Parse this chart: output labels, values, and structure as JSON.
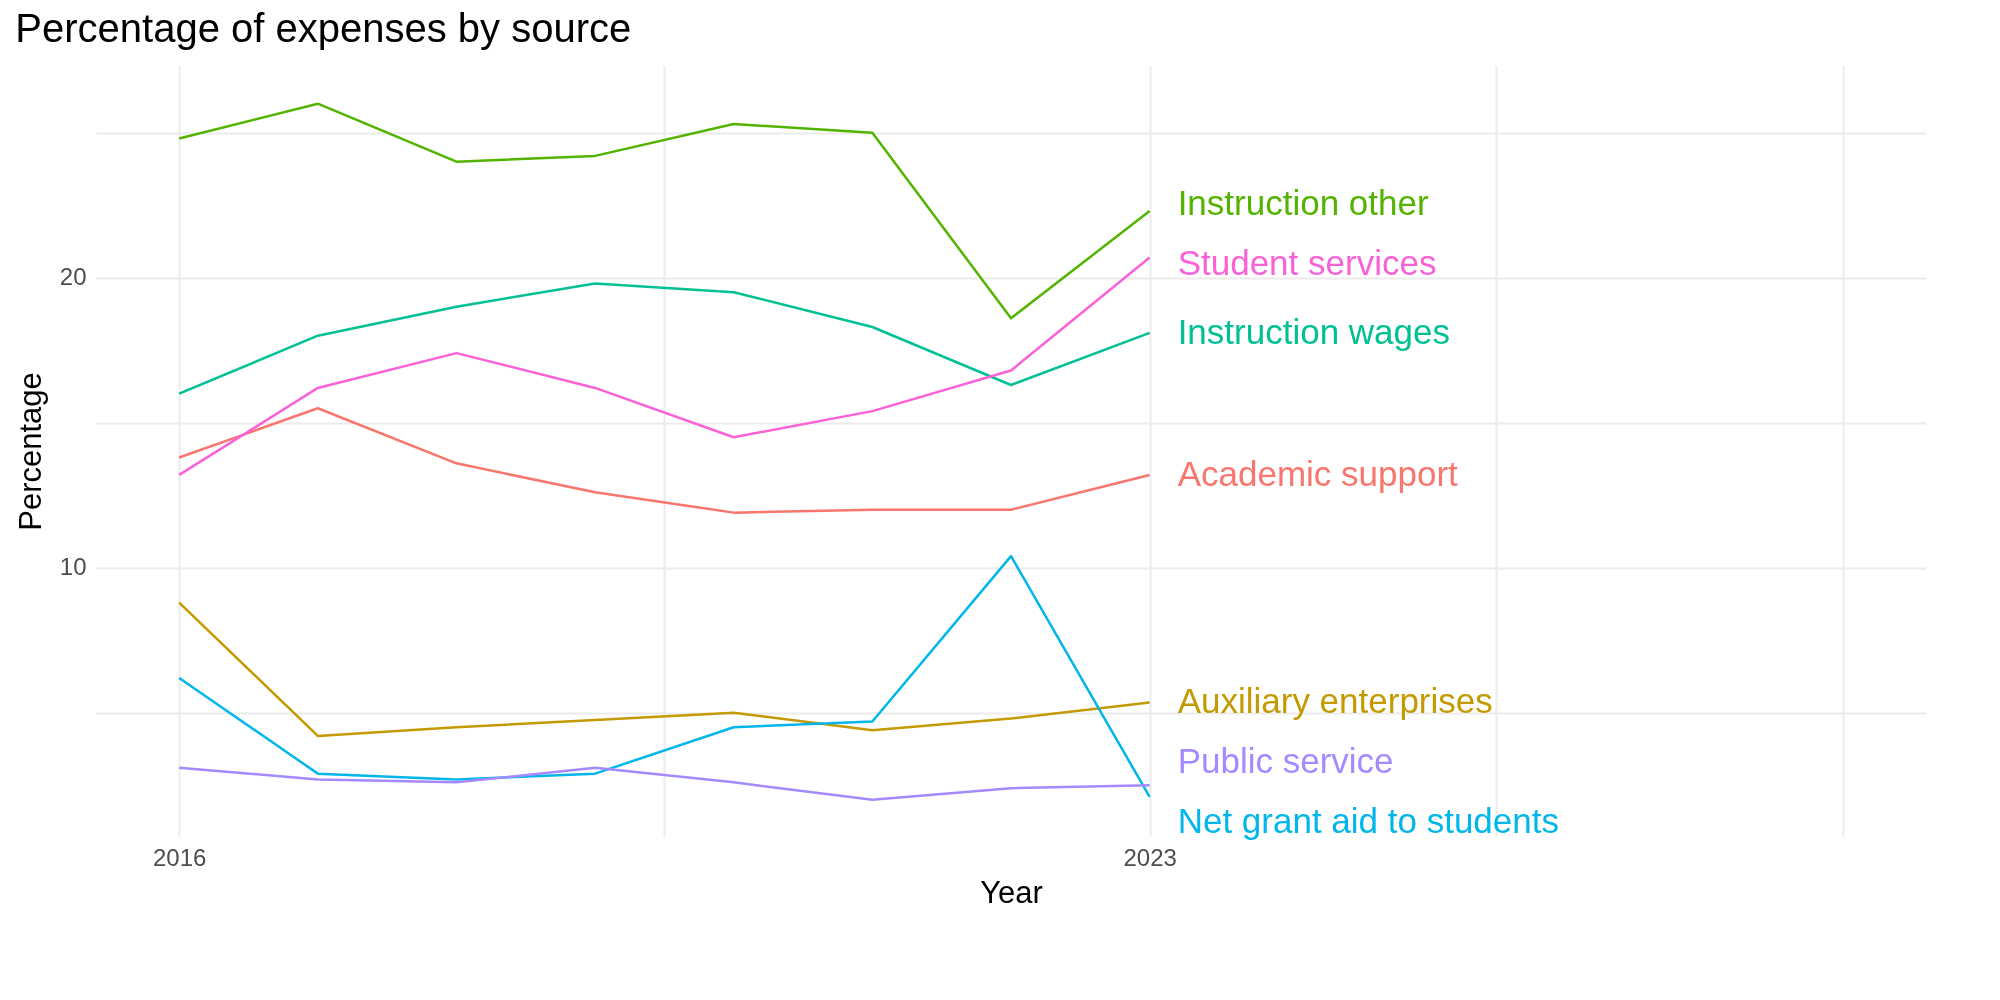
{
  "chart_data": {
    "type": "line",
    "title": "Percentage of expenses by source",
    "xlabel": "Year",
    "ylabel": "Percentage",
    "x": [
      2016,
      2017,
      2018,
      2019,
      2020,
      2021,
      2022,
      2023
    ],
    "xlim": [
      2015.4,
      2028.6
    ],
    "xticks": [
      2016,
      {
        "value": 2019.5,
        "label": null
      },
      2023,
      {
        "value": 2025.5,
        "label": null
      },
      {
        "value": 2028,
        "label": null
      }
    ],
    "ylim": [
      0.75,
      27.3
    ],
    "yticks": [
      {
        "value": 5,
        "label": null
      },
      10,
      {
        "value": 15,
        "label": null
      },
      20,
      {
        "value": 25,
        "label": null
      }
    ],
    "grid": true,
    "legend": false,
    "series": [
      {
        "name": "Academic support",
        "color": "#f8766d",
        "values": [
          13.8,
          15.5,
          13.6,
          12.6,
          11.9,
          12.0,
          12.0,
          13.2
        ]
      },
      {
        "name": "Auxiliary enterprises",
        "color": "#c49a00",
        "values": [
          8.8,
          4.2,
          4.5,
          4.75,
          5.0,
          4.4,
          4.8,
          5.35
        ]
      },
      {
        "name": "Instruction other",
        "color": "#53b400",
        "values": [
          24.8,
          26.0,
          24.0,
          24.2,
          25.3,
          25.0,
          18.6,
          22.3
        ]
      },
      {
        "name": "Instruction wages",
        "color": "#00c094",
        "values": [
          16.0,
          18.0,
          19.0,
          19.8,
          19.5,
          18.3,
          16.3,
          18.1
        ]
      },
      {
        "name": "Net grant aid to students",
        "color": "#00b6eb",
        "values": [
          6.2,
          2.9,
          2.7,
          2.9,
          4.5,
          4.7,
          10.4,
          2.1
        ]
      },
      {
        "name": "Public service",
        "color": "#a58aff",
        "values": [
          3.1,
          2.7,
          2.6,
          3.1,
          2.6,
          2.0,
          2.4,
          2.5
        ]
      },
      {
        "name": "Student services",
        "color": "#fb61d7",
        "values": [
          13.2,
          16.2,
          17.4,
          16.2,
          14.5,
          15.4,
          16.8,
          20.7
        ]
      }
    ]
  }
}
